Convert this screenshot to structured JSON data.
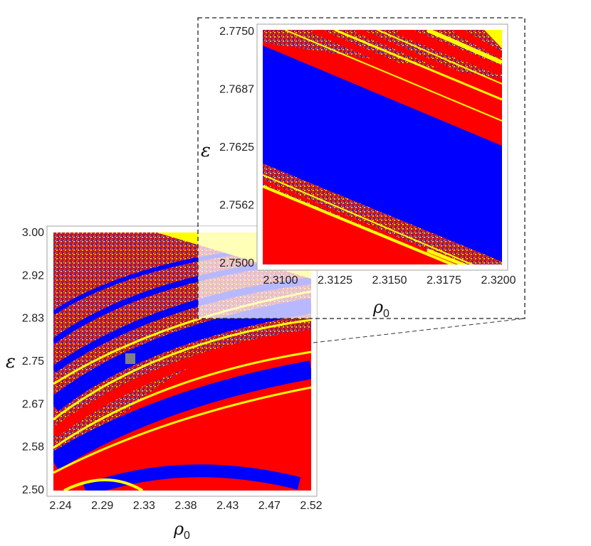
{
  "colors": {
    "red": "#ff0000",
    "blue": "#0000ff",
    "yellow": "#ffff00",
    "frame": "#a0a0a0",
    "marker": "#808080",
    "dashed": "#222222"
  },
  "chart_data": [
    {
      "type": "heatmap",
      "title": "",
      "xlabel": "ρ",
      "xlabel_sub": "0",
      "ylabel": "ε",
      "xlim": [
        2.24,
        2.52
      ],
      "ylim": [
        2.5,
        3.0
      ],
      "x_ticks": [
        "2.24",
        "2.29",
        "2.33",
        "2.38",
        "2.43",
        "2.47",
        "2.52"
      ],
      "y_ticks": [
        "2.50",
        "2.58",
        "2.67",
        "2.75",
        "2.83",
        "2.92",
        "3.00"
      ],
      "highlight_region": {
        "x": [
          2.31,
          2.32
        ],
        "y": [
          2.75,
          2.775
        ]
      },
      "color_classes": [
        "red",
        "blue",
        "yellow",
        "mixed"
      ]
    },
    {
      "type": "heatmap",
      "title": "",
      "xlabel": "ρ",
      "xlabel_sub": "0",
      "ylabel": "ε",
      "xlim": [
        2.31,
        2.32
      ],
      "ylim": [
        2.75,
        2.775
      ],
      "x_ticks": [
        "2.3100",
        "2.3125",
        "2.3150",
        "2.3175",
        "2.3200"
      ],
      "y_ticks": [
        "2.7500",
        "2.7562",
        "2.7625",
        "2.7687",
        "2.7750"
      ],
      "color_classes": [
        "red",
        "blue",
        "yellow",
        "mixed"
      ]
    }
  ]
}
